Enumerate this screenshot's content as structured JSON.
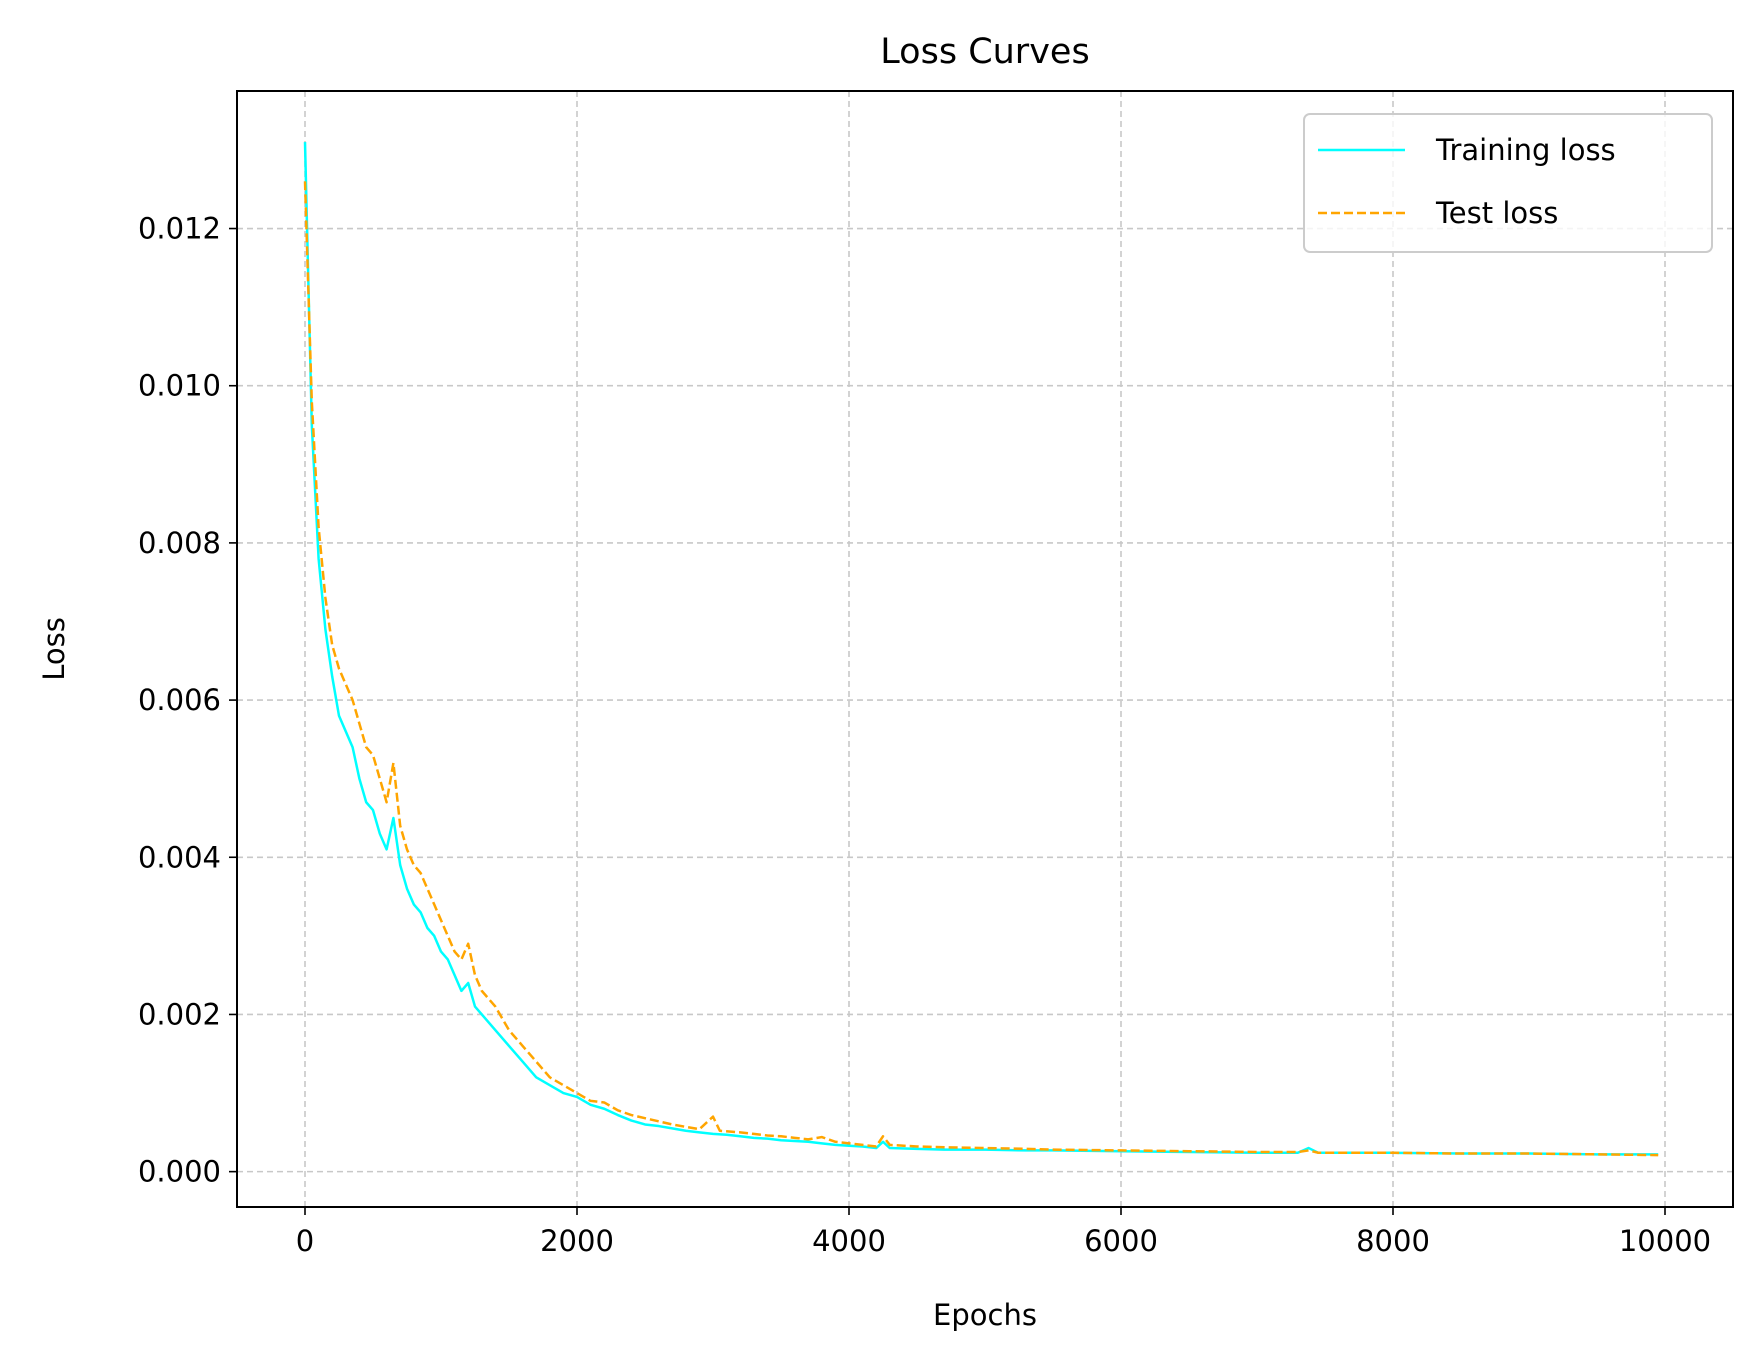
{
  "chart_data": {
    "type": "line",
    "title": "Loss Curves",
    "xlabel": "Epochs",
    "ylabel": "Loss",
    "xlim": [
      -500,
      10500
    ],
    "ylim": [
      -0.00045,
      0.01375
    ],
    "xticks": [
      0,
      2000,
      4000,
      6000,
      8000,
      10000
    ],
    "xtick_labels": [
      "0",
      "2000",
      "4000",
      "6000",
      "8000",
      "10000"
    ],
    "yticks": [
      0.0,
      0.002,
      0.004,
      0.006,
      0.008,
      0.01,
      0.012
    ],
    "ytick_labels": [
      "0.000",
      "0.002",
      "0.004",
      "0.006",
      "0.008",
      "0.010",
      "0.012"
    ],
    "grid": true,
    "legend_position": "top-right",
    "series": [
      {
        "name": "Training loss",
        "color": "#00ffff",
        "style": "solid",
        "points": [
          [
            0,
            0.0131
          ],
          [
            50,
            0.0095
          ],
          [
            100,
            0.0078
          ],
          [
            150,
            0.0069
          ],
          [
            200,
            0.0063
          ],
          [
            250,
            0.0058
          ],
          [
            300,
            0.0056
          ],
          [
            350,
            0.0054
          ],
          [
            400,
            0.005
          ],
          [
            450,
            0.0047
          ],
          [
            500,
            0.0046
          ],
          [
            550,
            0.0043
          ],
          [
            600,
            0.0041
          ],
          [
            650,
            0.0045
          ],
          [
            700,
            0.0039
          ],
          [
            750,
            0.0036
          ],
          [
            800,
            0.0034
          ],
          [
            850,
            0.0033
          ],
          [
            900,
            0.0031
          ],
          [
            950,
            0.003
          ],
          [
            1000,
            0.0028
          ],
          [
            1050,
            0.0027
          ],
          [
            1100,
            0.0025
          ],
          [
            1150,
            0.0023
          ],
          [
            1200,
            0.0024
          ],
          [
            1250,
            0.0021
          ],
          [
            1300,
            0.002
          ],
          [
            1400,
            0.0018
          ],
          [
            1500,
            0.0016
          ],
          [
            1600,
            0.0014
          ],
          [
            1700,
            0.0012
          ],
          [
            1800,
            0.0011
          ],
          [
            1900,
            0.001
          ],
          [
            2000,
            0.00095
          ],
          [
            2100,
            0.00085
          ],
          [
            2200,
            0.0008
          ],
          [
            2300,
            0.00072
          ],
          [
            2400,
            0.00065
          ],
          [
            2500,
            0.0006
          ],
          [
            2600,
            0.00058
          ],
          [
            2700,
            0.00055
          ],
          [
            2800,
            0.00052
          ],
          [
            2900,
            0.0005
          ],
          [
            3000,
            0.00048
          ],
          [
            3100,
            0.00047
          ],
          [
            3200,
            0.00045
          ],
          [
            3300,
            0.00043
          ],
          [
            3400,
            0.00042
          ],
          [
            3500,
            0.0004
          ],
          [
            3600,
            0.00039
          ],
          [
            3700,
            0.00038
          ],
          [
            3800,
            0.00036
          ],
          [
            3900,
            0.00034
          ],
          [
            4000,
            0.00033
          ],
          [
            4100,
            0.00032
          ],
          [
            4200,
            0.0003
          ],
          [
            4250,
            0.00038
          ],
          [
            4300,
            0.0003
          ],
          [
            4500,
            0.00029
          ],
          [
            4700,
            0.00028
          ],
          [
            5000,
            0.00028
          ],
          [
            5300,
            0.00027
          ],
          [
            5500,
            0.00027
          ],
          [
            6000,
            0.00026
          ],
          [
            6500,
            0.00025
          ],
          [
            7000,
            0.00024
          ],
          [
            7300,
            0.00024
          ],
          [
            7380,
            0.0003
          ],
          [
            7450,
            0.00024
          ],
          [
            8000,
            0.00024
          ],
          [
            8500,
            0.00023
          ],
          [
            9000,
            0.00023
          ],
          [
            9500,
            0.00022
          ],
          [
            9950,
            0.00022
          ]
        ]
      },
      {
        "name": "Test loss",
        "color": "#ffa500",
        "style": "dashed",
        "points": [
          [
            0,
            0.0126
          ],
          [
            50,
            0.0098
          ],
          [
            100,
            0.0082
          ],
          [
            150,
            0.0073
          ],
          [
            200,
            0.0067
          ],
          [
            250,
            0.0064
          ],
          [
            300,
            0.0062
          ],
          [
            350,
            0.006
          ],
          [
            400,
            0.0057
          ],
          [
            450,
            0.0054
          ],
          [
            500,
            0.0053
          ],
          [
            550,
            0.005
          ],
          [
            600,
            0.0047
          ],
          [
            650,
            0.0052
          ],
          [
            700,
            0.0044
          ],
          [
            750,
            0.0041
          ],
          [
            800,
            0.0039
          ],
          [
            850,
            0.0038
          ],
          [
            900,
            0.0036
          ],
          [
            950,
            0.0034
          ],
          [
            1000,
            0.0032
          ],
          [
            1050,
            0.003
          ],
          [
            1100,
            0.0028
          ],
          [
            1150,
            0.0027
          ],
          [
            1200,
            0.0029
          ],
          [
            1250,
            0.0025
          ],
          [
            1300,
            0.0023
          ],
          [
            1400,
            0.0021
          ],
          [
            1500,
            0.0018
          ],
          [
            1600,
            0.0016
          ],
          [
            1700,
            0.0014
          ],
          [
            1800,
            0.0012
          ],
          [
            1900,
            0.0011
          ],
          [
            2000,
            0.001
          ],
          [
            2100,
            0.0009
          ],
          [
            2200,
            0.00088
          ],
          [
            2300,
            0.00078
          ],
          [
            2400,
            0.00072
          ],
          [
            2500,
            0.00068
          ],
          [
            2600,
            0.00064
          ],
          [
            2700,
            0.0006
          ],
          [
            2800,
            0.00057
          ],
          [
            2900,
            0.00054
          ],
          [
            3000,
            0.0007
          ],
          [
            3050,
            0.00052
          ],
          [
            3200,
            0.0005
          ],
          [
            3300,
            0.00048
          ],
          [
            3400,
            0.00046
          ],
          [
            3500,
            0.00045
          ],
          [
            3600,
            0.00043
          ],
          [
            3700,
            0.00041
          ],
          [
            3800,
            0.00044
          ],
          [
            3900,
            0.00038
          ],
          [
            4000,
            0.00036
          ],
          [
            4100,
            0.00034
          ],
          [
            4200,
            0.00032
          ],
          [
            4250,
            0.00045
          ],
          [
            4300,
            0.00034
          ],
          [
            4500,
            0.00032
          ],
          [
            4700,
            0.00031
          ],
          [
            5000,
            0.0003
          ],
          [
            5300,
            0.00029
          ],
          [
            5500,
            0.00028
          ],
          [
            6000,
            0.00027
          ],
          [
            6500,
            0.00026
          ],
          [
            7000,
            0.00025
          ],
          [
            7300,
            0.00025
          ],
          [
            7380,
            0.00027
          ],
          [
            7450,
            0.00024
          ],
          [
            8000,
            0.00024
          ],
          [
            8500,
            0.00023
          ],
          [
            9000,
            0.00023
          ],
          [
            9500,
            0.00022
          ],
          [
            9950,
            0.00021
          ]
        ]
      }
    ]
  }
}
